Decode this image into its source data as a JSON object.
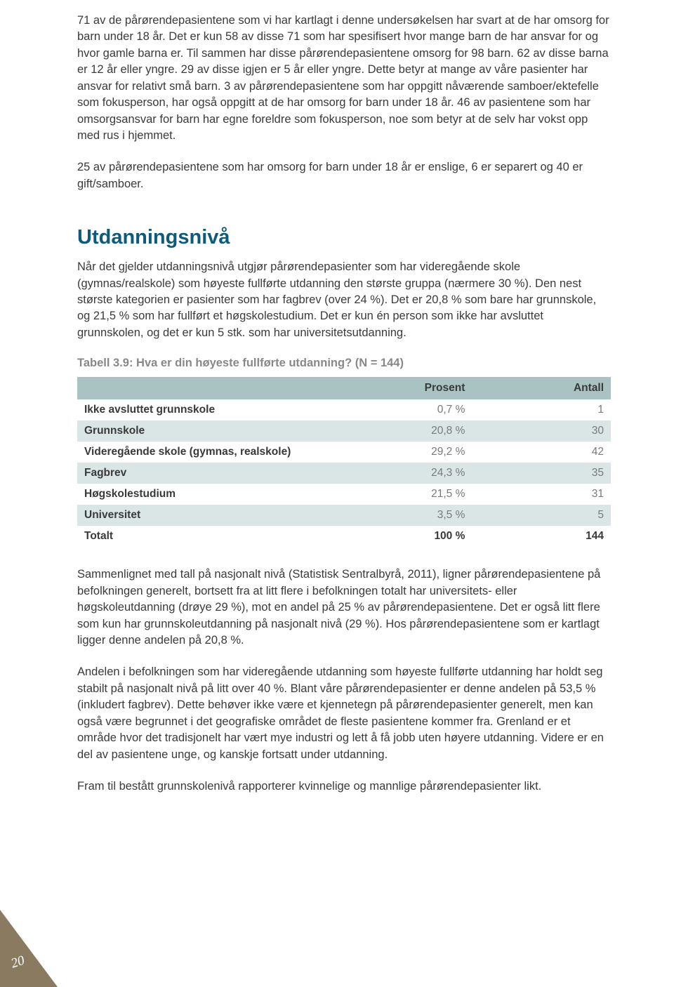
{
  "paragraphs": {
    "p1": "71 av de pårørendepasientene som vi har kartlagt i denne undersøkelsen har svart at de har omsorg for barn under 18 år. Det er kun 58 av disse 71 som har spesifisert hvor mange barn de har ansvar for og hvor gamle barna er. Til sammen har disse pårørendepasientene omsorg for 98 barn. 62 av disse barna er 12 år eller yngre. 29 av disse igjen er 5 år eller yngre. Dette betyr at mange av våre pasienter har ansvar for relativt små barn. 3 av pårørendepasientene som har oppgitt nåværende samboer/ektefelle som fokusperson, har også oppgitt at de har omsorg for barn under 18 år. 46 av pasientene som har omsorgsansvar for barn har egne foreldre som fokusperson, noe som betyr at de selv har vokst opp med rus i hjemmet.",
    "p2": "25 av pårørendepasientene som har omsorg for barn under 18 år er enslige, 6 er separert og 40 er gift/samboer.",
    "p3": "Når det gjelder utdanningsnivå utgjør pårørendepasienter som har videregående skole (gymnas/realskole) som høyeste fullførte utdanning den største gruppa (nærmere 30 %). Den nest største kategorien er pasienter som har fagbrev (over 24 %). Det er 20,8 % som bare har grunnskole, og 21,5 % som har fullført et høgskolestudium. Det er kun én person som ikke har avsluttet grunnskolen, og det er kun 5 stk. som har universitetsutdanning.",
    "p4": "Sammenlignet med tall på nasjonalt nivå (Statistisk Sentralbyrå, 2011), ligner pårørendepasientene på befolkningen generelt, bortsett fra at litt flere i befolkningen totalt har universitets- eller høgskoleutdanning (drøye 29 %), mot en andel på 25 % av pårørendepasientene. Det er også litt flere som kun har grunnskoleutdanning på nasjonalt nivå (29 %). Hos pårørendepasientene som er kartlagt ligger denne andelen på 20,8 %.",
    "p5": "Andelen i befolkningen som har videregående utdanning som høyeste fullførte utdanning har holdt seg stabilt på nasjonalt nivå på litt over 40 %. Blant våre pårørendepasienter er denne andelen på 53,5 % (inkludert fagbrev). Dette behøver ikke være et kjennetegn på pårørendepasienter generelt, men kan også være begrunnet i det geografiske området de fleste pasientene kommer fra. Grenland er et område hvor det tradisjonelt har vært mye industri og lett å få jobb uten høyere utdanning. Videre er en del av pasientene unge, og kanskje fortsatt under utdanning.",
    "p6": "Fram til bestått grunnskolenivå rapporterer kvinnelige og mannlige pårørendepasienter likt."
  },
  "heading": "Utdanningsnivå",
  "table": {
    "caption": "Tabell 3.9: Hva er din høyeste fullførte utdanning? (N = 144)",
    "header": {
      "first": "",
      "col2": "Prosent",
      "col3": "Antall"
    },
    "rows": [
      {
        "label": "Ikke avsluttet grunnskole",
        "prosent": "0,7 %",
        "antall": "1"
      },
      {
        "label": "Grunnskole",
        "prosent": "20,8 %",
        "antall": "30"
      },
      {
        "label": "Videregående skole (gymnas, realskole)",
        "prosent": "29,2 %",
        "antall": "42"
      },
      {
        "label": "Fagbrev",
        "prosent": "24,3 %",
        "antall": "35"
      },
      {
        "label": "Høgskolestudium",
        "prosent": "21,5 %",
        "antall": "31"
      },
      {
        "label": "Universitet",
        "prosent": "3,5 %",
        "antall": "5"
      }
    ],
    "total": {
      "label": "Totalt",
      "prosent": "100 %",
      "antall": "144"
    }
  },
  "pageNumber": "20",
  "colors": {
    "heading": "#0d5a7a",
    "caption": "#888888",
    "table_header_bg": "#a9c3c3",
    "table_row_even_bg": "#dae5e5",
    "corner": "#8a7a60",
    "body_text": "#3a3a3a",
    "value_text": "#7a7a7a"
  }
}
